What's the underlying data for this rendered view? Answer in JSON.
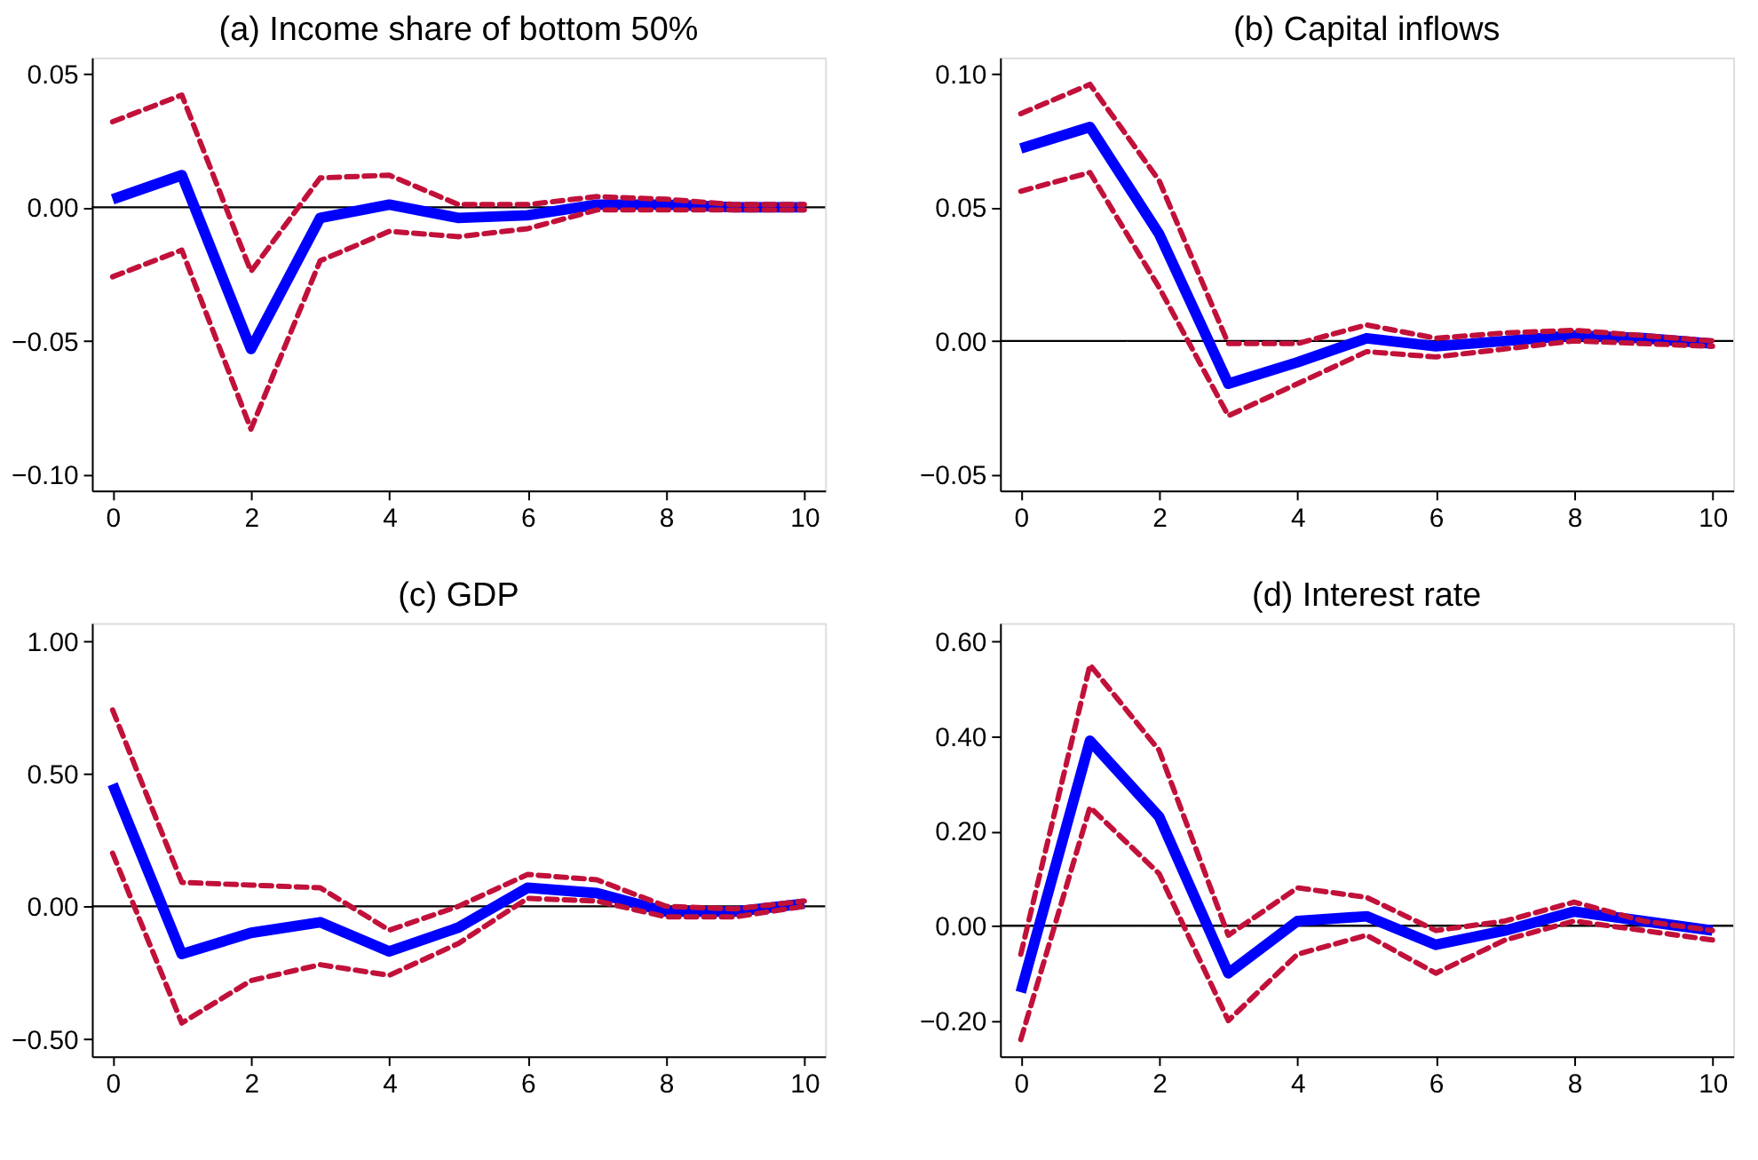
{
  "chart_data": [
    {
      "type": "line",
      "title": "(a) Income share of bottom 50%",
      "x": [
        0,
        1,
        2,
        3,
        4,
        5,
        6,
        7,
        8,
        9,
        10
      ],
      "series": [
        {
          "color": "#c1113a",
          "line_style": "dashed",
          "values": [
            0.032,
            0.042,
            -0.024,
            0.011,
            0.012,
            0.001,
            0.001,
            0.004,
            0.003,
            0.001,
            0.001
          ]
        },
        {
          "color": "#c1113a",
          "line_style": "dashed",
          "values": [
            -0.026,
            -0.016,
            -0.083,
            -0.02,
            -0.009,
            -0.011,
            -0.008,
            -0.001,
            -0.001,
            -0.001,
            -0.001
          ]
        },
        {
          "color": "#0000ff",
          "line_style": "solid",
          "values": [
            0.003,
            0.012,
            -0.053,
            -0.004,
            0.001,
            -0.004,
            -0.003,
            0.001,
            0.001,
            0.0,
            0.0
          ]
        }
      ],
      "xlim": [
        -0.3,
        10.3
      ],
      "xticks": [
        0,
        2,
        4,
        6,
        8,
        10
      ],
      "ylim": [
        -0.106,
        0.056
      ],
      "yticks": [
        {
          "value": -0.1,
          "label": "−0.10"
        },
        {
          "value": -0.05,
          "label": "−0.05"
        },
        {
          "value": 0,
          "label": "0.00"
        },
        {
          "value": 0.05,
          "label": "0.05"
        }
      ],
      "ref_lines": [
        {
          "axis": "y",
          "value": 0,
          "color": "#000000"
        }
      ],
      "grid": false
    },
    {
      "type": "line",
      "title": "(b) Capital inflows",
      "x": [
        0,
        1,
        2,
        3,
        4,
        5,
        6,
        7,
        8,
        9,
        10
      ],
      "series": [
        {
          "color": "#c1113a",
          "line_style": "dashed",
          "values": [
            0.085,
            0.096,
            0.06,
            -0.001,
            -0.001,
            0.006,
            0.001,
            0.003,
            0.004,
            0.002,
            0.0
          ]
        },
        {
          "color": "#c1113a",
          "line_style": "dashed",
          "values": [
            0.056,
            0.063,
            0.02,
            -0.028,
            -0.016,
            -0.004,
            -0.006,
            -0.003,
            0.0,
            -0.001,
            -0.002
          ]
        },
        {
          "color": "#0000ff",
          "line_style": "solid",
          "values": [
            0.072,
            0.08,
            0.04,
            -0.016,
            -0.008,
            0.001,
            -0.002,
            0.0,
            0.002,
            0.001,
            -0.001
          ]
        }
      ],
      "xlim": [
        -0.3,
        10.3
      ],
      "xticks": [
        0,
        2,
        4,
        6,
        8,
        10
      ],
      "ylim": [
        -0.056,
        0.106
      ],
      "yticks": [
        {
          "value": -0.05,
          "label": "−0.05"
        },
        {
          "value": 0,
          "label": "0.00"
        },
        {
          "value": 0.05,
          "label": "0.05"
        },
        {
          "value": 0.1,
          "label": "0.10"
        }
      ],
      "ref_lines": [
        {
          "axis": "y",
          "value": 0,
          "color": "#000000"
        }
      ],
      "grid": false
    },
    {
      "type": "line",
      "title": "(c) GDP",
      "x": [
        0,
        1,
        2,
        3,
        4,
        5,
        6,
        7,
        8,
        9,
        10
      ],
      "series": [
        {
          "color": "#c1113a",
          "line_style": "dashed",
          "values": [
            0.74,
            0.09,
            0.08,
            0.07,
            -0.09,
            0.0,
            0.12,
            0.1,
            0.0,
            -0.01,
            0.02
          ]
        },
        {
          "color": "#c1113a",
          "line_style": "dashed",
          "values": [
            0.2,
            -0.44,
            -0.28,
            -0.22,
            -0.26,
            -0.14,
            0.03,
            0.02,
            -0.04,
            -0.04,
            0.0
          ]
        },
        {
          "color": "#0000ff",
          "line_style": "solid",
          "values": [
            0.46,
            -0.18,
            -0.1,
            -0.06,
            -0.17,
            -0.08,
            0.07,
            0.05,
            -0.02,
            -0.02,
            0.01
          ]
        }
      ],
      "xlim": [
        -0.3,
        10.3
      ],
      "xticks": [
        0,
        2,
        4,
        6,
        8,
        10
      ],
      "ylim": [
        -0.565,
        1.067
      ],
      "yticks": [
        {
          "value": -0.5,
          "label": "−0.50"
        },
        {
          "value": 0,
          "label": "0.00"
        },
        {
          "value": 0.5,
          "label": "0.50"
        },
        {
          "value": 1,
          "label": "1.00"
        }
      ],
      "ref_lines": [
        {
          "axis": "y",
          "value": 0,
          "color": "#000000"
        }
      ],
      "grid": false
    },
    {
      "type": "line",
      "title": "(d) Interest rate",
      "x": [
        0,
        1,
        2,
        3,
        4,
        5,
        6,
        7,
        8,
        9,
        10
      ],
      "series": [
        {
          "color": "#c1113a",
          "line_style": "dashed",
          "values": [
            -0.06,
            0.55,
            0.37,
            -0.02,
            0.08,
            0.06,
            -0.01,
            0.01,
            0.05,
            0.01,
            -0.01
          ]
        },
        {
          "color": "#c1113a",
          "line_style": "dashed",
          "values": [
            -0.24,
            0.25,
            0.11,
            -0.2,
            -0.06,
            -0.02,
            -0.1,
            -0.03,
            0.01,
            -0.01,
            -0.03
          ]
        },
        {
          "color": "#0000ff",
          "line_style": "solid",
          "values": [
            -0.14,
            0.39,
            0.23,
            -0.1,
            0.01,
            0.02,
            -0.04,
            -0.01,
            0.03,
            0.01,
            -0.01
          ]
        }
      ],
      "xlim": [
        -0.3,
        10.3
      ],
      "xticks": [
        0,
        2,
        4,
        6,
        8,
        10
      ],
      "ylim": [
        -0.275,
        0.638
      ],
      "yticks": [
        {
          "value": -0.2,
          "label": "−0.20"
        },
        {
          "value": 0,
          "label": "0.00"
        },
        {
          "value": 0.2,
          "label": "0.20"
        },
        {
          "value": 0.4,
          "label": "0.40"
        },
        {
          "value": 0.6,
          "label": "0.60"
        }
      ],
      "ref_lines": [
        {
          "axis": "y",
          "value": 0,
          "color": "#000000"
        }
      ],
      "grid": false
    }
  ]
}
